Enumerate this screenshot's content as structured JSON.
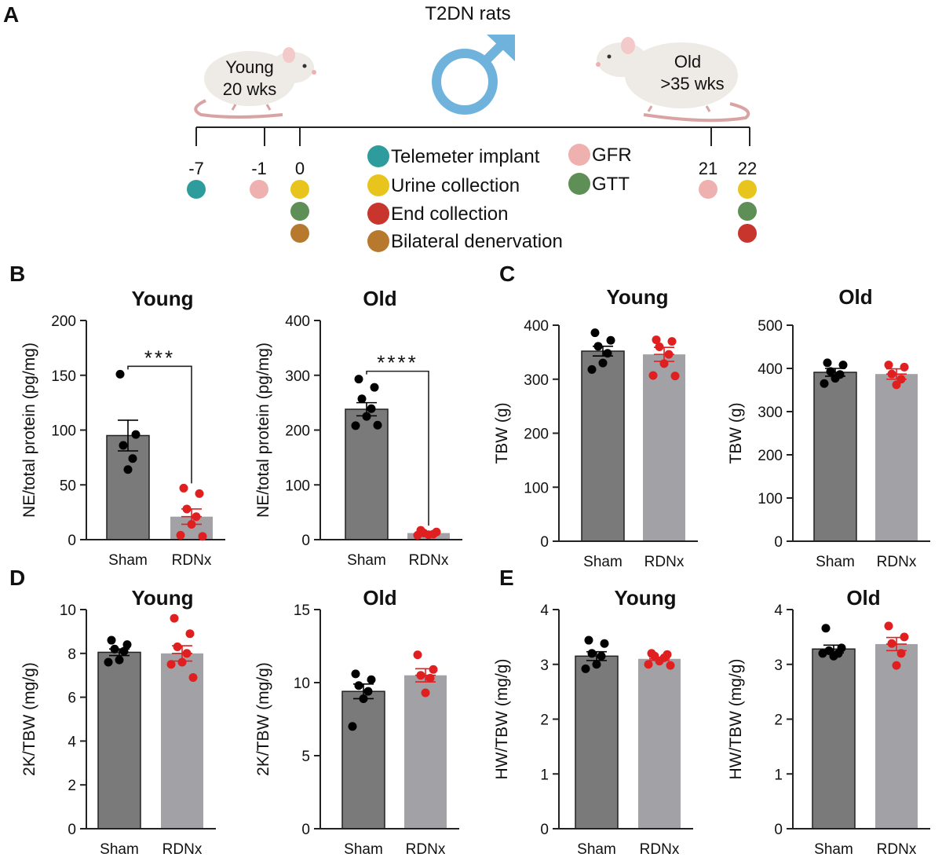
{
  "panel_letters": [
    "A",
    "B",
    "C",
    "D",
    "E"
  ],
  "timeline": {
    "title": "T2DN rats",
    "young_label": [
      "Young",
      "20 wks"
    ],
    "old_label": [
      "Old",
      ">35 wks"
    ],
    "days": [
      {
        "label": "-7",
        "dots": [
          "telemeter"
        ]
      },
      {
        "label": "-1",
        "dots": [
          "gfr"
        ]
      },
      {
        "label": "0",
        "dots": [
          "urine",
          "gtt",
          "denervation"
        ]
      },
      {
        "label": "21",
        "dots": [
          "gfr"
        ]
      },
      {
        "label": "22",
        "dots": [
          "urine",
          "gtt",
          "end"
        ]
      }
    ],
    "legend": [
      {
        "key": "telemeter",
        "label": "Telemeter implant",
        "color": "#2e9c9c"
      },
      {
        "key": "urine",
        "label": "Urine collection",
        "color": "#e8c51d"
      },
      {
        "key": "end",
        "label": "End collection",
        "color": "#c8352d"
      },
      {
        "key": "denervation",
        "label": "Bilateral denervation",
        "color": "#b7792d"
      },
      {
        "key": "gfr",
        "label": "GFR",
        "color": "#efb0b0"
      },
      {
        "key": "gtt",
        "label": "GTT",
        "color": "#5e8f56"
      }
    ],
    "male_symbol_color": "#6fb3dd"
  },
  "colors": {
    "sham_bar": "#7a7a7a",
    "rdnx_bar": "#a2a2a6",
    "sham_dot": "#000000",
    "rdnx_dot": "#e02020",
    "sham_err": "#000000",
    "rdnx_err": "#e02020"
  },
  "chart_data": [
    {
      "panel": "B",
      "type": "bar",
      "title": "Young",
      "ylabel": "NE/total protein (pg/mg)",
      "ylim": [
        0,
        200
      ],
      "yticks": [
        0,
        50,
        100,
        150,
        200
      ],
      "categories": [
        "Sham",
        "RDNx"
      ],
      "series": [
        {
          "name": "Sham",
          "mean": 95,
          "sem": 14,
          "points": [
            151,
            96,
            86,
            74,
            64
          ]
        },
        {
          "name": "RDNx",
          "mean": 21,
          "sem": 7,
          "points": [
            47,
            42,
            28,
            21,
            14,
            4,
            3
          ]
        }
      ],
      "significance": "***"
    },
    {
      "panel": "B",
      "type": "bar",
      "title": "Old",
      "ylabel": "NE/total protein (pg/mg)",
      "ylim": [
        0,
        400
      ],
      "yticks": [
        0,
        100,
        200,
        300,
        400
      ],
      "categories": [
        "Sham",
        "RDNx"
      ],
      "series": [
        {
          "name": "Sham",
          "mean": 238,
          "sem": 12,
          "points": [
            293,
            278,
            257,
            239,
            225,
            208,
            209
          ]
        },
        {
          "name": "RDNx",
          "mean": 12,
          "sem": 2,
          "points": [
            17,
            14,
            12,
            10,
            9,
            8
          ]
        }
      ],
      "significance": "****"
    },
    {
      "panel": "C",
      "type": "bar",
      "title": "Young",
      "ylabel": "TBW (g)",
      "ylim": [
        0,
        400
      ],
      "yticks": [
        0,
        100,
        200,
        300,
        400
      ],
      "categories": [
        "Sham",
        "RDNx"
      ],
      "series": [
        {
          "name": "Sham",
          "mean": 352,
          "sem": 9,
          "points": [
            386,
            372,
            361,
            348,
            330,
            318
          ]
        },
        {
          "name": "RDNx",
          "mean": 346,
          "sem": 13,
          "points": [
            373,
            370,
            360,
            346,
            329,
            307,
            306
          ]
        }
      ]
    },
    {
      "panel": "C",
      "type": "bar",
      "title": "Old",
      "ylabel": "TBW (g)",
      "ylim": [
        0,
        500
      ],
      "yticks": [
        0,
        100,
        200,
        300,
        400,
        500
      ],
      "categories": [
        "Sham",
        "RDNx"
      ],
      "series": [
        {
          "name": "Sham",
          "mean": 391,
          "sem": 9,
          "points": [
            413,
            408,
            393,
            386,
            377,
            365
          ]
        },
        {
          "name": "RDNx",
          "mean": 387,
          "sem": 12,
          "points": [
            408,
            403,
            387,
            375,
            362
          ]
        }
      ]
    },
    {
      "panel": "D",
      "type": "bar",
      "title": "Young",
      "ylabel": "2K/TBW (mg/g)",
      "ylim": [
        0,
        10
      ],
      "yticks": [
        0,
        2,
        4,
        6,
        8,
        10
      ],
      "categories": [
        "Sham",
        "RDNx"
      ],
      "series": [
        {
          "name": "Sham",
          "mean": 8.05,
          "sem": 0.15,
          "points": [
            8.6,
            8.4,
            8.2,
            8.1,
            7.7,
            7.6
          ]
        },
        {
          "name": "RDNx",
          "mean": 8.0,
          "sem": 0.35,
          "points": [
            9.6,
            8.9,
            8.3,
            8.0,
            7.6,
            7.5,
            6.9
          ]
        }
      ]
    },
    {
      "panel": "D",
      "type": "bar",
      "title": "Old",
      "ylabel": "2K/TBW (mg/g)",
      "ylim": [
        0,
        15
      ],
      "yticks": [
        0,
        5,
        10,
        15
      ],
      "categories": [
        "Sham",
        "RDNx"
      ],
      "series": [
        {
          "name": "Sham",
          "mean": 9.4,
          "sem": 0.5,
          "points": [
            10.6,
            10.2,
            9.8,
            9.4,
            8.9,
            7.0
          ]
        },
        {
          "name": "RDNx",
          "mean": 10.5,
          "sem": 0.45,
          "points": [
            11.9,
            10.9,
            10.5,
            10.3,
            9.3
          ]
        }
      ]
    },
    {
      "panel": "E",
      "type": "bar",
      "title": "Young",
      "ylabel": "HW/TBW (mg/g)",
      "ylim": [
        0,
        4
      ],
      "yticks": [
        0,
        1,
        2,
        3,
        4
      ],
      "categories": [
        "Sham",
        "RDNx"
      ],
      "series": [
        {
          "name": "Sham",
          "mean": 3.15,
          "sem": 0.08,
          "points": [
            3.44,
            3.38,
            3.2,
            3.15,
            3.0,
            2.92
          ]
        },
        {
          "name": "RDNx",
          "mean": 3.1,
          "sem": 0.03,
          "points": [
            3.2,
            3.18,
            3.15,
            3.12,
            3.06,
            3.0,
            2.98
          ]
        }
      ]
    },
    {
      "panel": "E",
      "type": "bar",
      "title": "Old",
      "ylabel": "HW/TBW (mg/g)",
      "ylim": [
        0,
        4
      ],
      "yticks": [
        0,
        1,
        2,
        3,
        4
      ],
      "categories": [
        "Sham",
        "RDNx"
      ],
      "series": [
        {
          "name": "Sham",
          "mean": 3.28,
          "sem": 0.07,
          "points": [
            3.66,
            3.3,
            3.25,
            3.2,
            3.15,
            3.2
          ]
        },
        {
          "name": "RDNx",
          "mean": 3.37,
          "sem": 0.12,
          "points": [
            3.7,
            3.5,
            3.38,
            3.2,
            2.98
          ]
        }
      ]
    }
  ]
}
